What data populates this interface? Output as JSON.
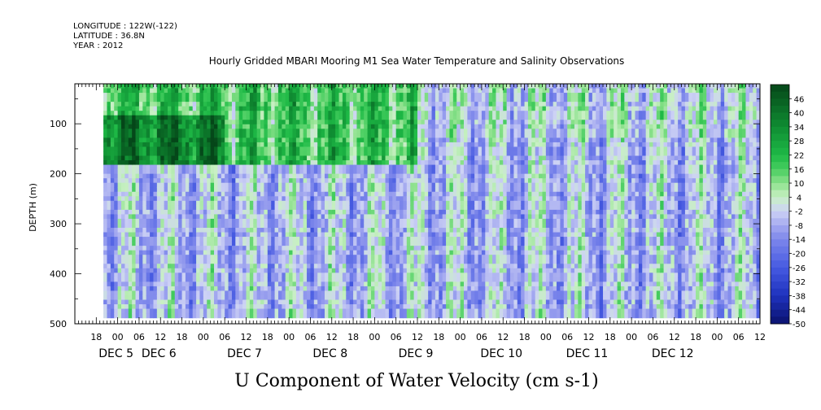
{
  "header": {
    "longitude": "LONGITUDE : 122W(-122)",
    "latitude": "LATITUDE : 36.8N",
    "year": "YEAR : 2012",
    "title": "Hourly Gridded MBARI Mooring M1 Sea Water Temperature and Salinity Observations"
  },
  "chart_data": {
    "type": "heatmap",
    "title": "U Component of Water Velocity (cm s-1)",
    "ylabel": "DEPTH (m)",
    "ylim": [
      500,
      20
    ],
    "yticks": [
      100,
      200,
      300,
      400,
      500
    ],
    "xlim_hours": [
      -12,
      180
    ],
    "x_hour_ticks": [
      "18",
      "00",
      "06",
      "12",
      "18",
      "00",
      "06",
      "12",
      "18",
      "00",
      "06",
      "12",
      "18",
      "00",
      "06",
      "12",
      "18",
      "00",
      "06",
      "12",
      "18",
      "00",
      "06",
      "12",
      "18",
      "00",
      "06",
      "12",
      "18",
      "00",
      "06",
      "12"
    ],
    "x_hour_tick_values": [
      -6,
      0,
      6,
      12,
      18,
      24,
      30,
      36,
      42,
      48,
      54,
      60,
      66,
      72,
      78,
      84,
      90,
      96,
      102,
      108,
      114,
      120,
      126,
      132,
      138,
      144,
      150,
      156,
      162,
      168,
      174,
      180
    ],
    "day_labels": [
      {
        "text": "DEC  5",
        "hour": 0
      },
      {
        "text": "DEC  6",
        "hour": 12
      },
      {
        "text": "DEC  7",
        "hour": 36
      },
      {
        "text": "DEC  8",
        "hour": 60
      },
      {
        "text": "DEC  9",
        "hour": 84
      },
      {
        "text": "DEC 10",
        "hour": 108
      },
      {
        "text": "DEC 11",
        "hour": 132
      },
      {
        "text": "DEC 12",
        "hour": 156
      }
    ],
    "data_extent": {
      "depth_top": 20,
      "depth_bottom": 485,
      "hour_start": -4,
      "hour_end": 180
    },
    "colorbar_levels": [
      "46",
      "40",
      "34",
      "28",
      "22",
      "16",
      "10",
      "4",
      "-2",
      "-8",
      "-14",
      "-20",
      "-26",
      "-32",
      "-38",
      "-44",
      "-50"
    ],
    "colorbar_range": [
      -50,
      52
    ],
    "field_summary": [
      {
        "hours": [
          -4,
          84
        ],
        "depths": [
          20,
          180
        ],
        "mean": 18
      },
      {
        "hours": [
          84,
          180
        ],
        "depths": [
          20,
          120
        ],
        "mean": 0
      },
      {
        "hours": [
          -4,
          180
        ],
        "depths": [
          180,
          485
        ],
        "mean": -5
      }
    ]
  },
  "colors": {
    "strong_positive": "#0b6b2a",
    "positive": "#27c35a",
    "light_positive": "#a7e8a0",
    "neutral": "#d8dcef",
    "light_negative": "#aab0ef",
    "negative": "#7f86e6",
    "strong_negative": "#1a2aa8"
  }
}
